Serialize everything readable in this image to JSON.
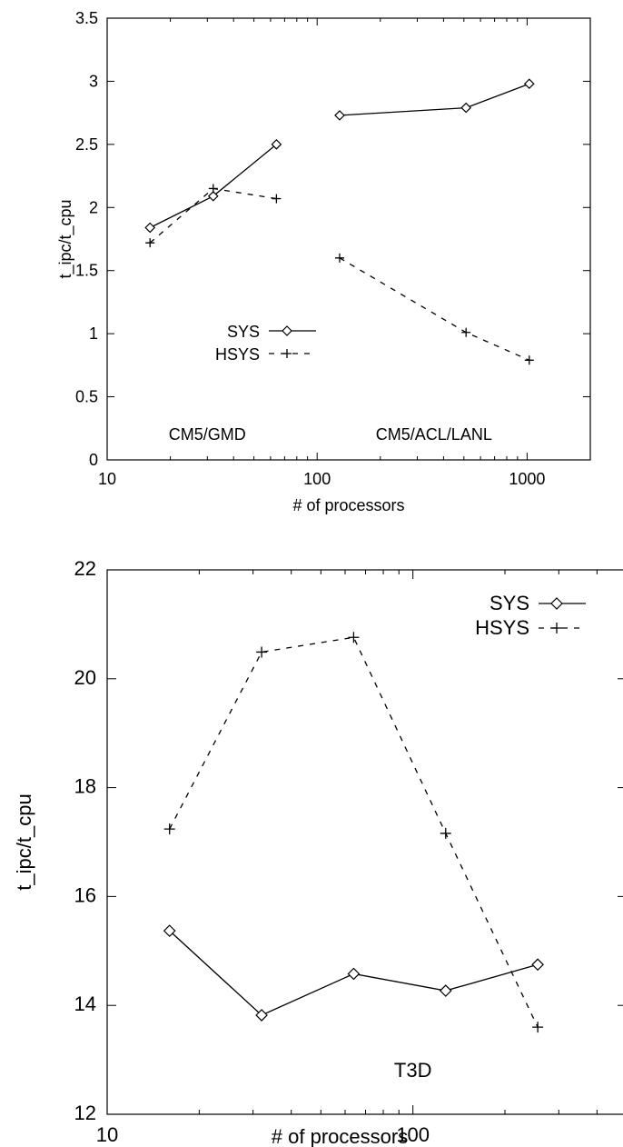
{
  "chart_data": [
    {
      "type": "line",
      "xscale": "log",
      "xlim": [
        10,
        2000
      ],
      "ylim": [
        0,
        3.5
      ],
      "xticks": [
        10,
        100,
        1000
      ],
      "yticks": [
        0,
        0.5,
        1,
        1.5,
        2,
        2.5,
        3,
        3.5
      ],
      "xtick_labels": [
        "10",
        "100",
        "1000"
      ],
      "ytick_labels": [
        "0",
        "0.5",
        "1",
        "1.5",
        "2",
        "2.5",
        "3",
        "3.5"
      ],
      "xlabel": "# of processors",
      "ylabel": "t_ipc/t_cpu",
      "legend": {
        "position": "middle-left",
        "entries": [
          "SYS",
          "HSYS"
        ]
      },
      "annotations": [
        {
          "text": "CM5/GMD",
          "x": 30,
          "y": 0.22
        },
        {
          "text": "CM5/ACL/LANL",
          "x": 360,
          "y": 0.22
        }
      ],
      "series": [
        {
          "name": "SYS",
          "style": "solid",
          "marker": "diamond",
          "segments": [
            {
              "x": [
                16,
                32,
                64
              ],
              "y": [
                1.84,
                2.09,
                2.5
              ]
            },
            {
              "x": [
                128,
                512,
                1024
              ],
              "y": [
                2.73,
                2.79,
                2.98
              ]
            }
          ]
        },
        {
          "name": "HSYS",
          "style": "dashed",
          "marker": "plus",
          "segments": [
            {
              "x": [
                16,
                32,
                64
              ],
              "y": [
                1.72,
                2.15,
                2.07
              ]
            },
            {
              "x": [
                128,
                512,
                1024
              ],
              "y": [
                1.6,
                1.01,
                0.79
              ]
            }
          ]
        }
      ]
    },
    {
      "type": "line",
      "xscale": "log",
      "xlim": [
        10,
        500
      ],
      "ylim": [
        12,
        22
      ],
      "xticks": [
        10,
        100
      ],
      "yticks": [
        12,
        14,
        16,
        18,
        20,
        22
      ],
      "xtick_labels": [
        "10",
        "100"
      ],
      "ytick_labels": [
        "12",
        "14",
        "16",
        "18",
        "20",
        "22"
      ],
      "xlabel": "# of processors",
      "ylabel": "t_ipc/t_cpu",
      "legend": {
        "position": "top-right",
        "entries": [
          "SYS",
          "HSYS"
        ]
      },
      "annotations": [
        {
          "text": "T3D",
          "x": 100,
          "y": 12.9
        }
      ],
      "series": [
        {
          "name": "SYS",
          "style": "solid",
          "marker": "diamond",
          "segments": [
            {
              "x": [
                16,
                32,
                64,
                128,
                256
              ],
              "y": [
                15.37,
                13.82,
                14.58,
                14.27,
                14.75
              ]
            }
          ]
        },
        {
          "name": "HSYS",
          "style": "dashed",
          "marker": "plus",
          "segments": [
            {
              "x": [
                16,
                32,
                64,
                128,
                256
              ],
              "y": [
                17.24,
                20.49,
                20.76,
                17.16,
                13.6
              ]
            }
          ]
        }
      ]
    }
  ]
}
